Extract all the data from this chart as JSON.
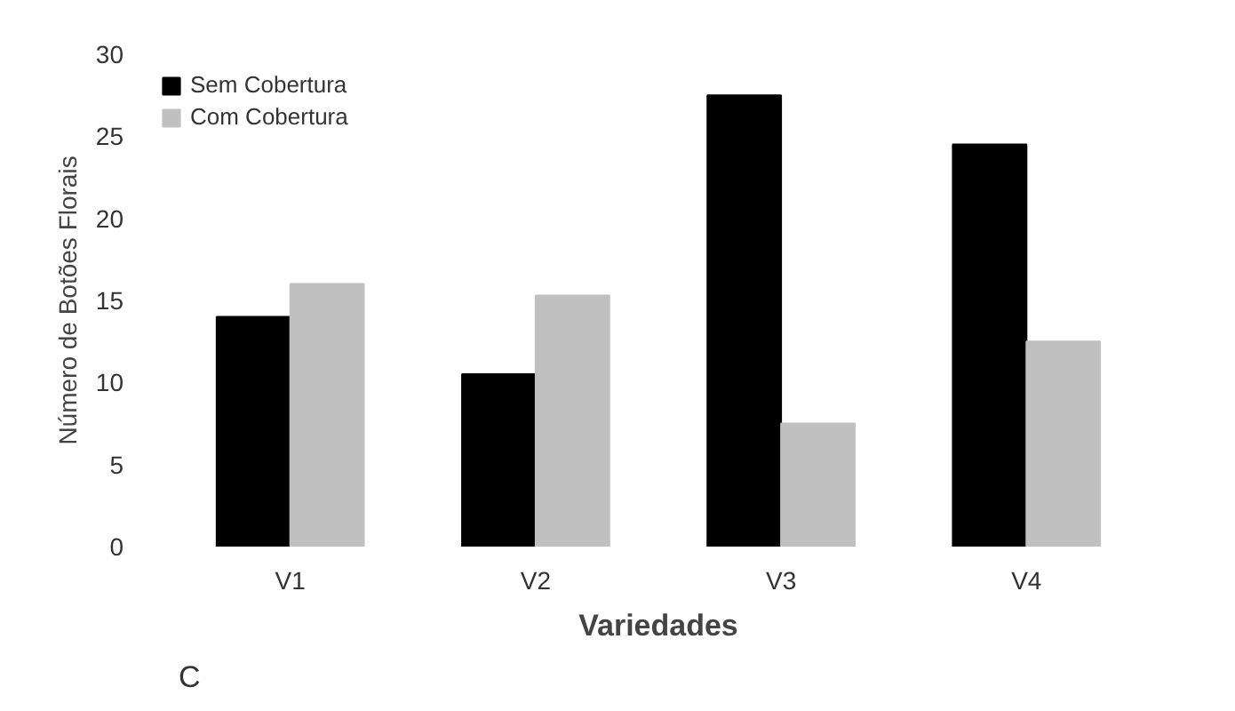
{
  "chart_data": {
    "type": "bar",
    "xlabel": "Variedades",
    "ylabel": "Número de Botões Florais",
    "categories": [
      "V1",
      "V2",
      "V3",
      "V4"
    ],
    "series": [
      {
        "name": "Sem Cobertura",
        "color": "#000000",
        "values": [
          14,
          10.5,
          27.5,
          24.5
        ]
      },
      {
        "name": "Com Cobertura",
        "color": "#c0c0c0",
        "values": [
          16,
          15.3,
          7.5,
          12.5
        ]
      }
    ],
    "ylim": [
      0,
      30
    ],
    "yticks": [
      0,
      5,
      10,
      15,
      20,
      25,
      30
    ],
    "grid": false,
    "legend": "top left",
    "annotations": [
      "C"
    ]
  }
}
